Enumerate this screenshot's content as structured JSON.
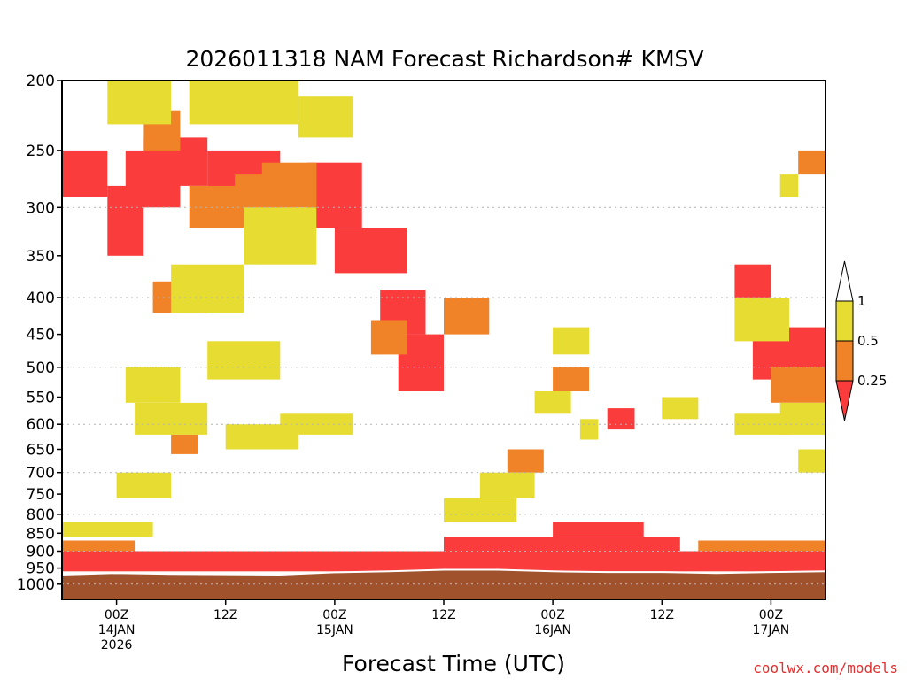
{
  "chart_data": {
    "type": "heatmap",
    "title": "2026011318 NAM Forecast Richardson# KMSV",
    "xlabel": "Forecast Time (UTC)",
    "ylabel": "",
    "y_scale": "log-pressure",
    "y_ticks": [
      200,
      250,
      300,
      350,
      400,
      450,
      500,
      550,
      600,
      650,
      700,
      750,
      800,
      850,
      900,
      950,
      1000
    ],
    "ylim": [
      1050,
      200
    ],
    "x_ticks": [
      {
        "hour": 6,
        "lines": [
          "00Z",
          "14JAN",
          "2026"
        ]
      },
      {
        "hour": 18,
        "lines": [
          "12Z"
        ]
      },
      {
        "hour": 30,
        "lines": [
          "00Z",
          "15JAN"
        ]
      },
      {
        "hour": 42,
        "lines": [
          "12Z"
        ]
      },
      {
        "hour": 54,
        "lines": [
          "00Z",
          "16JAN"
        ]
      },
      {
        "hour": 66,
        "lines": [
          "12Z"
        ]
      },
      {
        "hour": 78,
        "lines": [
          "00Z",
          "17JAN"
        ]
      }
    ],
    "xlim": [
      0,
      84
    ],
    "grid_lines_hpa": [
      300,
      400,
      500,
      600,
      700,
      800,
      900,
      1000
    ],
    "colorbar": {
      "levels": [
        "1",
        "0.5",
        "0.25"
      ],
      "bins": [
        {
          "label": "0.5 - 1",
          "color": "#e6dc32"
        },
        {
          "label": "0.25 - 0.5",
          "color": "#f08228"
        },
        {
          "label": "< 0.25",
          "color": "#fa3c3c"
        },
        {
          "label": "> 1",
          "color": "#ffffff"
        }
      ]
    },
    "colors": {
      "yellow": "#e6dc32",
      "orange": "#f08228",
      "red": "#fa3c3c",
      "ground": "#a0522d"
    },
    "surface_pressure_hpa": [
      {
        "hour": 0,
        "p": 970
      },
      {
        "hour": 6,
        "p": 965
      },
      {
        "hour": 12,
        "p": 968
      },
      {
        "hour": 24,
        "p": 970
      },
      {
        "hour": 30,
        "p": 963
      },
      {
        "hour": 36,
        "p": 960
      },
      {
        "hour": 42,
        "p": 955
      },
      {
        "hour": 48,
        "p": 955
      },
      {
        "hour": 54,
        "p": 960
      },
      {
        "hour": 60,
        "p": 962
      },
      {
        "hour": 66,
        "p": 962
      },
      {
        "hour": 72,
        "p": 965
      },
      {
        "hour": 78,
        "p": 962
      },
      {
        "hour": 84,
        "p": 960
      }
    ],
    "regions": [
      {
        "x": [
          0,
          84
        ],
        "p": [
          960,
          900
        ],
        "color": "red"
      },
      {
        "x": [
          42,
          68
        ],
        "p": [
          900,
          860
        ],
        "color": "red"
      },
      {
        "x": [
          54,
          64
        ],
        "p": [
          860,
          820
        ],
        "color": "red"
      },
      {
        "x": [
          0,
          8
        ],
        "p": [
          900,
          870
        ],
        "color": "orange"
      },
      {
        "x": [
          70,
          84
        ],
        "p": [
          900,
          870
        ],
        "color": "orange"
      },
      {
        "x": [
          0,
          5
        ],
        "p": [
          290,
          250
        ],
        "color": "red"
      },
      {
        "x": [
          5,
          9
        ],
        "p": [
          350,
          280
        ],
        "color": "red"
      },
      {
        "x": [
          7,
          13
        ],
        "p": [
          300,
          250
        ],
        "color": "red"
      },
      {
        "x": [
          9,
          16
        ],
        "p": [
          280,
          240
        ],
        "color": "red"
      },
      {
        "x": [
          16,
          24
        ],
        "p": [
          300,
          250
        ],
        "color": "red"
      },
      {
        "x": [
          27,
          33
        ],
        "p": [
          320,
          260
        ],
        "color": "red"
      },
      {
        "x": [
          30,
          38
        ],
        "p": [
          370,
          320
        ],
        "color": "red"
      },
      {
        "x": [
          35,
          40
        ],
        "p": [
          450,
          390
        ],
        "color": "red"
      },
      {
        "x": [
          37,
          42
        ],
        "p": [
          540,
          450
        ],
        "color": "red"
      },
      {
        "x": [
          76,
          84
        ],
        "p": [
          520,
          440
        ],
        "color": "red"
      },
      {
        "x": [
          74,
          78
        ],
        "p": [
          400,
          360
        ],
        "color": "red"
      },
      {
        "x": [
          60,
          63
        ],
        "p": [
          610,
          570
        ],
        "color": "red"
      },
      {
        "x": [
          9,
          13
        ],
        "p": [
          250,
          220
        ],
        "color": "orange"
      },
      {
        "x": [
          14,
          20
        ],
        "p": [
          320,
          280
        ],
        "color": "orange"
      },
      {
        "x": [
          22,
          28
        ],
        "p": [
          300,
          260
        ],
        "color": "orange"
      },
      {
        "x": [
          19,
          26
        ],
        "p": [
          300,
          270
        ],
        "color": "orange"
      },
      {
        "x": [
          10,
          16
        ],
        "p": [
          420,
          380
        ],
        "color": "orange"
      },
      {
        "x": [
          12,
          15
        ],
        "p": [
          660,
          620
        ],
        "color": "orange"
      },
      {
        "x": [
          34,
          38
        ],
        "p": [
          480,
          430
        ],
        "color": "orange"
      },
      {
        "x": [
          42,
          47
        ],
        "p": [
          450,
          400
        ],
        "color": "orange"
      },
      {
        "x": [
          49,
          53
        ],
        "p": [
          700,
          650
        ],
        "color": "orange"
      },
      {
        "x": [
          54,
          58
        ],
        "p": [
          540,
          500
        ],
        "color": "orange"
      },
      {
        "x": [
          78,
          84
        ],
        "p": [
          560,
          500
        ],
        "color": "orange"
      },
      {
        "x": [
          81,
          84
        ],
        "p": [
          270,
          250
        ],
        "color": "orange"
      },
      {
        "x": [
          14,
          26
        ],
        "p": [
          230,
          200
        ],
        "color": "yellow"
      },
      {
        "x": [
          5,
          12
        ],
        "p": [
          230,
          200
        ],
        "color": "yellow"
      },
      {
        "x": [
          26,
          32
        ],
        "p": [
          240,
          210
        ],
        "color": "yellow"
      },
      {
        "x": [
          20,
          28
        ],
        "p": [
          360,
          300
        ],
        "color": "yellow"
      },
      {
        "x": [
          12,
          20
        ],
        "p": [
          420,
          360
        ],
        "color": "yellow"
      },
      {
        "x": [
          7,
          13
        ],
        "p": [
          560,
          500
        ],
        "color": "yellow"
      },
      {
        "x": [
          16,
          24
        ],
        "p": [
          520,
          460
        ],
        "color": "yellow"
      },
      {
        "x": [
          8,
          16
        ],
        "p": [
          620,
          560
        ],
        "color": "yellow"
      },
      {
        "x": [
          18,
          26
        ],
        "p": [
          650,
          600
        ],
        "color": "yellow"
      },
      {
        "x": [
          24,
          32
        ],
        "p": [
          620,
          580
        ],
        "color": "yellow"
      },
      {
        "x": [
          54,
          58
        ],
        "p": [
          480,
          440
        ],
        "color": "yellow"
      },
      {
        "x": [
          52,
          56
        ],
        "p": [
          580,
          540
        ],
        "color": "yellow"
      },
      {
        "x": [
          46,
          52
        ],
        "p": [
          760,
          700
        ],
        "color": "yellow"
      },
      {
        "x": [
          42,
          50
        ],
        "p": [
          820,
          760
        ],
        "color": "yellow"
      },
      {
        "x": [
          6,
          12
        ],
        "p": [
          760,
          700
        ],
        "color": "yellow"
      },
      {
        "x": [
          0,
          10
        ],
        "p": [
          860,
          820
        ],
        "color": "yellow"
      },
      {
        "x": [
          74,
          80
        ],
        "p": [
          460,
          400
        ],
        "color": "yellow"
      },
      {
        "x": [
          79,
          84
        ],
        "p": [
          620,
          560
        ],
        "color": "yellow"
      },
      {
        "x": [
          74,
          80
        ],
        "p": [
          620,
          580
        ],
        "color": "yellow"
      },
      {
        "x": [
          81,
          84
        ],
        "p": [
          700,
          650
        ],
        "color": "yellow"
      },
      {
        "x": [
          79,
          81
        ],
        "p": [
          290,
          270
        ],
        "color": "yellow"
      },
      {
        "x": [
          66,
          70
        ],
        "p": [
          590,
          550
        ],
        "color": "yellow"
      },
      {
        "x": [
          57,
          59
        ],
        "p": [
          630,
          590
        ],
        "color": "yellow"
      }
    ]
  },
  "credit": "coolwx.com/models"
}
